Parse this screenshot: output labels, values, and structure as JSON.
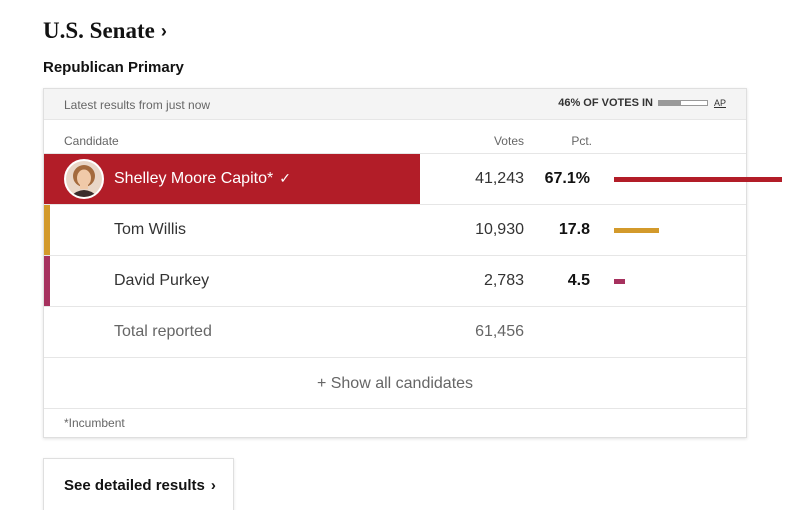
{
  "header": {
    "title": "U.S. Senate",
    "title_chevron": "›",
    "subtitle": "Republican Primary"
  },
  "status": {
    "latest": "Latest results from just now",
    "reporting_label": "46% OF VOTES IN",
    "reporting_fraction": 0.46,
    "source": "AP"
  },
  "columns": {
    "candidate": "Candidate",
    "votes": "Votes",
    "pct": "Pct."
  },
  "candidates": [
    {
      "name": "Shelley Moore Capito*",
      "votes": "41,243",
      "pct": "67.1%",
      "pct_value": 67.1,
      "color": "#b21d28",
      "winner": true,
      "check": "✓"
    },
    {
      "name": "Tom Willis",
      "votes": "10,930",
      "pct": "17.8",
      "pct_value": 17.8,
      "color": "#d39a2b",
      "winner": false
    },
    {
      "name": "David Purkey",
      "votes": "2,783",
      "pct": "4.5",
      "pct_value": 4.5,
      "color": "#a6315e",
      "winner": false
    }
  ],
  "total": {
    "label": "Total reported",
    "votes": "61,456"
  },
  "show_all": "+ Show all candidates",
  "footnote": "*Incumbent",
  "detail_button": {
    "label": "See detailed results",
    "chevron": "›"
  }
}
